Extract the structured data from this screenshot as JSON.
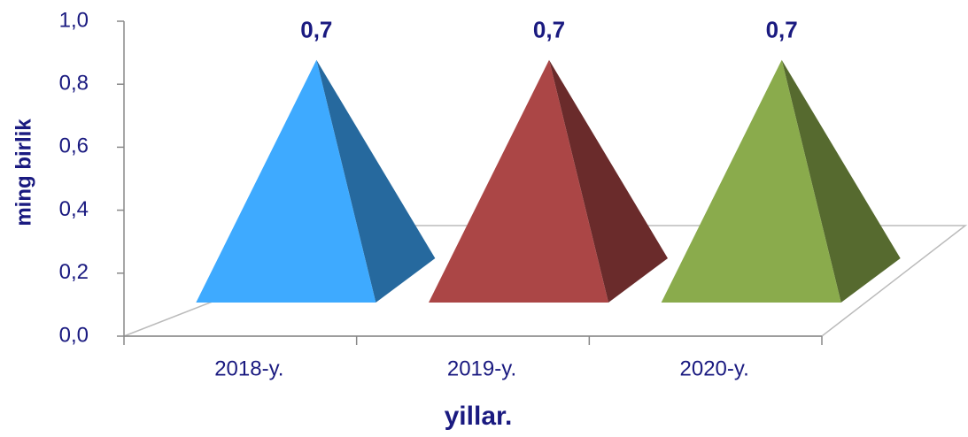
{
  "chart_data": {
    "type": "pyramid",
    "categories": [
      "2018-y.",
      "2019-y.",
      "2020-y."
    ],
    "values": [
      0.7,
      0.7,
      0.7
    ],
    "value_labels": [
      "0,7",
      "0,7",
      "0,7"
    ],
    "colors": [
      "#3eaaff",
      "#ab4646",
      "#8aab4c"
    ],
    "ylabel": "ming birlik",
    "xlabel": "yillar.",
    "ylim": [
      0,
      1
    ],
    "yticks": [
      {
        "value": 0,
        "label": "0,0"
      },
      {
        "value": 0.2,
        "label": "0,2"
      },
      {
        "value": 0.4,
        "label": "0,4"
      },
      {
        "value": 0.6,
        "label": "0,6"
      },
      {
        "value": 0.8,
        "label": "0,8"
      },
      {
        "value": 1,
        "label": "1,0"
      }
    ],
    "grid": false
  }
}
